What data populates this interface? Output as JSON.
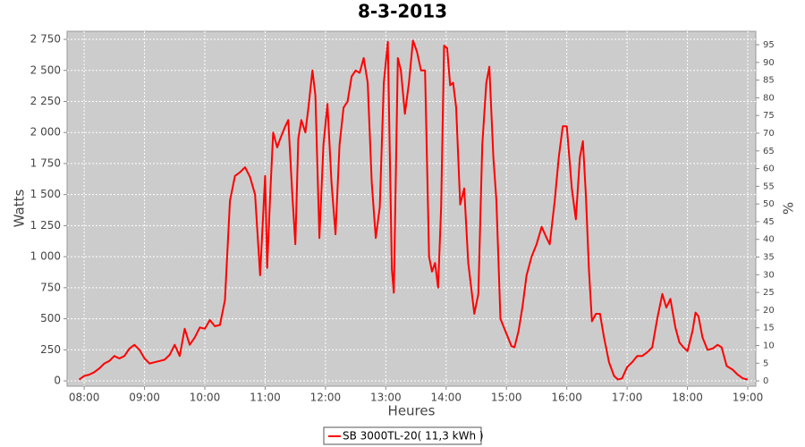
{
  "chart_data": {
    "type": "line",
    "title": "8-3-2013",
    "ylabel": "Watts",
    "y2label": "%",
    "xlabel": "Heures",
    "grid": true,
    "legend": "bottom",
    "xlim": [
      "07:43",
      "19:08"
    ],
    "xticks": [
      "08:00",
      "09:00",
      "10:00",
      "11:00",
      "12:00",
      "13:00",
      "14:00",
      "15:00",
      "16:00",
      "17:00",
      "18:00",
      "19:00"
    ],
    "ylim": [
      -43,
      2815
    ],
    "yticks": [
      0,
      250,
      500,
      750,
      {
        "value": 1000,
        "label": "1 000"
      },
      {
        "value": 1250,
        "label": "1 250"
      },
      {
        "value": 1500,
        "label": "1 500"
      },
      {
        "value": 1750,
        "label": "1 750"
      },
      {
        "value": 2000,
        "label": "2 000"
      },
      {
        "value": 2250,
        "label": "2 250"
      },
      {
        "value": 2500,
        "label": "2 500"
      },
      {
        "value": 2750,
        "label": "2 750"
      }
    ],
    "y2lim": [
      -1.5,
      98.8
    ],
    "y2ticks": [
      0,
      5,
      10,
      15,
      20,
      25,
      30,
      35,
      40,
      45,
      50,
      55,
      60,
      65,
      70,
      75,
      80,
      85,
      90,
      95
    ],
    "x": [
      "07:55",
      "08:00",
      "08:05",
      "08:10",
      "08:15",
      "08:20",
      "08:25",
      "08:30",
      "08:35",
      "08:40",
      "08:45",
      "08:50",
      "08:55",
      "09:00",
      "09:05",
      "09:10",
      "09:15",
      "09:20",
      "09:25",
      "09:30",
      "09:35",
      "09:40",
      "09:45",
      "09:50",
      "09:55",
      "10:00",
      "10:05",
      "10:10",
      "10:15",
      "10:20",
      "10:25",
      "10:30",
      "10:35",
      "10:40",
      "10:45",
      "10:50",
      "10:55",
      "11:00",
      "11:02",
      "11:05",
      "11:08",
      "11:12",
      "11:15",
      "11:20",
      "11:23",
      "11:27",
      "11:30",
      "11:33",
      "11:36",
      "11:40",
      "11:43",
      "11:47",
      "11:50",
      "11:54",
      "11:58",
      "12:02",
      "12:06",
      "12:10",
      "12:14",
      "12:18",
      "12:22",
      "12:26",
      "12:30",
      "12:34",
      "12:38",
      "12:42",
      "12:46",
      "12:50",
      "12:54",
      "12:58",
      "13:02",
      "13:06",
      "13:08",
      "13:12",
      "13:15",
      "13:19",
      "13:23",
      "13:27",
      "13:31",
      "13:35",
      "13:39",
      "13:43",
      "13:46",
      "13:49",
      "13:52",
      "13:55",
      "13:58",
      "14:01",
      "14:04",
      "14:07",
      "14:10",
      "14:14",
      "14:18",
      "14:22",
      "14:28",
      "14:32",
      "14:36",
      "14:40",
      "14:43",
      "14:47",
      "14:50",
      "14:54",
      "15:00",
      "15:05",
      "15:08",
      "15:12",
      "15:16",
      "15:20",
      "15:25",
      "15:30",
      "15:35",
      "15:40",
      "15:43",
      "15:48",
      "15:52",
      "15:56",
      "16:00",
      "16:05",
      "16:09",
      "16:13",
      "16:16",
      "16:19",
      "16:22",
      "16:25",
      "16:29",
      "16:33",
      "16:37",
      "16:42",
      "16:47",
      "16:51",
      "16:55",
      "17:00",
      "17:05",
      "17:10",
      "17:15",
      "17:20",
      "17:25",
      "17:30",
      "17:35",
      "17:39",
      "17:43",
      "17:48",
      "17:52",
      "17:56",
      "18:00",
      "18:05",
      "18:08",
      "18:11",
      "18:15",
      "18:20",
      "18:25",
      "18:30",
      "18:34",
      "18:39",
      "18:45",
      "18:50",
      "18:55",
      "19:00"
    ],
    "series": [
      {
        "name": "SB 3000TL-20( 11,3 kWh )",
        "color": "#ff0000",
        "values": [
          10,
          40,
          50,
          70,
          100,
          140,
          160,
          200,
          180,
          200,
          260,
          290,
          250,
          180,
          140,
          150,
          160,
          170,
          210,
          290,
          200,
          420,
          290,
          350,
          430,
          420,
          490,
          440,
          450,
          650,
          1450,
          1650,
          1680,
          1720,
          1640,
          1500,
          850,
          1650,
          910,
          1500,
          2000,
          1880,
          1950,
          2050,
          2100,
          1500,
          1100,
          1950,
          2100,
          2000,
          2200,
          2500,
          2300,
          1150,
          1900,
          2230,
          1600,
          1180,
          1900,
          2200,
          2250,
          2450,
          2500,
          2480,
          2600,
          2400,
          1600,
          1150,
          1400,
          2400,
          2730,
          900,
          710,
          2600,
          2500,
          2150,
          2400,
          2740,
          2650,
          2500,
          2500,
          1000,
          880,
          950,
          750,
          1400,
          2700,
          2680,
          2380,
          2400,
          2200,
          1420,
          1550,
          950,
          540,
          700,
          1900,
          2400,
          2530,
          1800,
          1450,
          500,
          380,
          280,
          270,
          400,
          600,
          850,
          1000,
          1100,
          1240,
          1150,
          1100,
          1450,
          1800,
          2050,
          2050,
          1550,
          1300,
          1800,
          1930,
          1500,
          900,
          480,
          540,
          540,
          350,
          150,
          40,
          10,
          20,
          110,
          150,
          200,
          200,
          230,
          270,
          500,
          700,
          590,
          660,
          430,
          310,
          270,
          240,
          400,
          550,
          520,
          350,
          250,
          260,
          290,
          270,
          120,
          90,
          50,
          20,
          10
        ]
      }
    ]
  }
}
